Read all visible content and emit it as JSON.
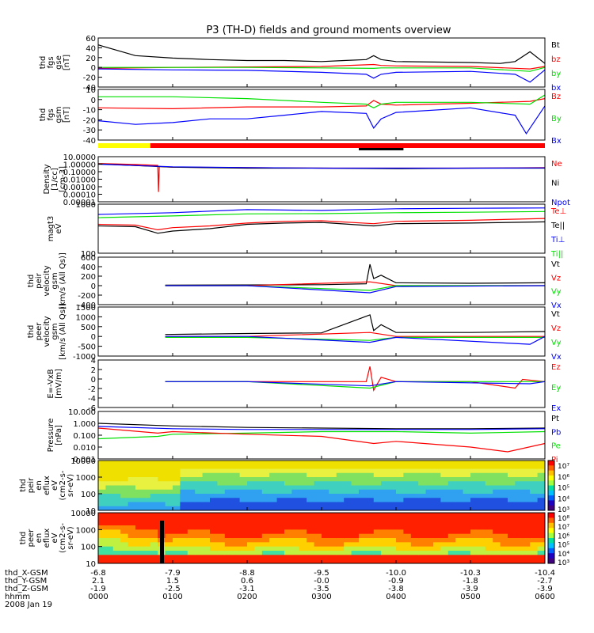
{
  "title": "P3 (TH-D) fields and ground moments overview",
  "colors": {
    "black": "#000000",
    "red": "#ff0000",
    "green": "#00e000",
    "blue": "#0000ff",
    "yellow": "#ffff00",
    "grid_frame": "#000000"
  },
  "chart_data": {
    "type": "line",
    "x_axis": {
      "time_labels": [
        "0000",
        "0100",
        "0200",
        "0300",
        "0400",
        "0500",
        "0600"
      ],
      "rows": [
        {
          "label": "thd_X-GSM",
          "values": [
            "-6.8",
            "-7.9",
            "-8.8",
            "-9.5",
            "-10.0",
            "-10.3",
            "-10.4"
          ]
        },
        {
          "label": "thd_Y-GSM",
          "values": [
            "2.1",
            "1.5",
            "0.6",
            "-0.0",
            "-0.9",
            "-1.8",
            "-2.7"
          ]
        },
        {
          "label": "thd_Z-GSM",
          "values": [
            "-1.9",
            "-2.5",
            "-3.1",
            "-3.5",
            "-3.8",
            "-3.9",
            "-3.9"
          ]
        },
        {
          "label": "hhmm",
          "values": []
        }
      ],
      "date": "2008 Jan 19",
      "range_hours": [
        0,
        6
      ]
    },
    "panels": [
      {
        "id": "fgs-gse",
        "ylabel": [
          "thd",
          "fgs",
          "gse",
          "[nT]"
        ],
        "yticks": [
          "60",
          "40",
          "20",
          "0",
          "-20",
          "-40"
        ],
        "ylim": [
          -40,
          60
        ],
        "series": [
          {
            "name": "Bt",
            "color": "black",
            "x": [
              0,
              0.5,
              1,
              1.5,
              2,
              2.5,
              3,
              3.3,
              3.6,
              3.7,
              3.8,
              4,
              4.5,
              5,
              5.4,
              5.6,
              5.8,
              6
            ],
            "y": [
              46,
              24,
              19,
              16,
              14,
              14,
              12,
              14,
              16,
              24,
              16,
              12,
              11,
              10,
              8,
              12,
              32,
              8
            ]
          },
          {
            "name": "bz",
            "color": "red",
            "x": [
              0,
              1,
              2,
              3,
              3.7,
              3.8,
              4,
              5,
              5.8,
              6
            ],
            "y": [
              -2,
              0,
              1,
              2,
              6,
              4,
              3,
              2,
              -3,
              2
            ]
          },
          {
            "name": "by",
            "color": "green",
            "x": [
              0,
              1,
              2,
              3,
              3.7,
              3.8,
              4,
              5,
              5.8,
              6
            ],
            "y": [
              0,
              0,
              0,
              -1,
              -2,
              -1,
              -1,
              -1,
              -8,
              0
            ]
          },
          {
            "name": "bx",
            "color": "blue",
            "x": [
              0,
              1,
              2,
              3,
              3.6,
              3.7,
              3.8,
              4,
              5,
              5.6,
              5.8,
              6
            ],
            "y": [
              -3,
              -5,
              -6,
              -10,
              -14,
              -22,
              -14,
              -10,
              -8,
              -14,
              -30,
              -5
            ]
          }
        ]
      },
      {
        "id": "fgs-gsm",
        "ylabel": [
          "thd",
          "fgs",
          "gsm",
          "[nT]"
        ],
        "yticks": [
          "10",
          "0",
          "-10",
          "-20",
          "-30",
          "-40"
        ],
        "ylim": [
          -45,
          10
        ],
        "series": [
          {
            "name": "Bz",
            "color": "red",
            "x": [
              0,
              1,
              2,
              3,
              3.6,
              3.7,
              3.8,
              4,
              5,
              5.8,
              6
            ],
            "y": [
              -10,
              -11,
              -9,
              -9,
              -8,
              -2,
              -6,
              -7,
              -5,
              -3,
              0
            ]
          },
          {
            "name": "By",
            "color": "green",
            "x": [
              0,
              1,
              2,
              3,
              3.6,
              3.7,
              3.8,
              4,
              5,
              5.8,
              6
            ],
            "y": [
              2,
              2,
              0,
              -4,
              -6,
              -10,
              -6,
              -4,
              -4,
              -6,
              4
            ]
          },
          {
            "name": "Bx",
            "color": "blue",
            "x": [
              0,
              0.5,
              1,
              1.5,
              2,
              2.5,
              3,
              3.6,
              3.7,
              3.8,
              4,
              5,
              5.6,
              5.75,
              6
            ],
            "y": [
              -24,
              -28,
              -26,
              -22,
              -22,
              -18,
              -14,
              -16,
              -32,
              -22,
              -15,
              -10,
              -18,
              -38,
              -8
            ]
          }
        ]
      },
      {
        "id": "density",
        "ylabel": [
          "Density",
          "[1/cc]",
          "[cm-3]"
        ],
        "yticks": [
          "10.0000",
          "1.00000",
          "0.10000",
          "0.01000",
          "0.00100",
          "0.00010",
          "0.00001"
        ],
        "ylim": [
          1e-05,
          10
        ],
        "scale": "log",
        "series": [
          {
            "name": "Ne",
            "color": "red",
            "x": [
              0,
              0.5,
              0.8,
              0.81,
              0.82,
              1,
              2,
              3,
              4,
              5,
              6
            ],
            "y": [
              1.2,
              0.9,
              0.7,
              0.0002,
              0.5,
              0.4,
              0.35,
              0.3,
              0.3,
              0.3,
              0.35
            ]
          },
          {
            "name": "Ni",
            "color": "black",
            "x": [
              0,
              1,
              2,
              3,
              4,
              5,
              6
            ],
            "y": [
              1.1,
              0.4,
              0.3,
              0.3,
              0.25,
              0.3,
              0.3
            ]
          },
          {
            "name": "Npot",
            "color": "blue",
            "x": [
              0,
              1,
              2,
              3,
              4,
              5,
              6
            ],
            "y": [
              1.0,
              0.45,
              0.35,
              0.3,
              0.3,
              0.3,
              0.32
            ]
          }
        ]
      },
      {
        "id": "temperature",
        "ylabel": [
          "magt3",
          "eV"
        ],
        "yticks": [
          "1000",
          "100"
        ],
        "ylim": [
          100,
          10000
        ],
        "scale": "log",
        "series": [
          {
            "name": "Te⊥",
            "color": "red",
            "x": [
              0,
              0.5,
              0.8,
              1,
              1.5,
              2,
              2.5,
              3,
              3.7,
              4,
              5,
              6
            ],
            "y": [
              1500,
              1400,
              900,
              1100,
              1300,
              1700,
              2000,
              2100,
              1600,
              2000,
              2200,
              2600
            ]
          },
          {
            "name": "Te||",
            "color": "black",
            "x": [
              0,
              0.5,
              0.8,
              1,
              1.5,
              2,
              2.5,
              3,
              3.7,
              4,
              5,
              6
            ],
            "y": [
              1300,
              1200,
              650,
              800,
              1000,
              1500,
              1700,
              1800,
              1300,
              1600,
              1700,
              1900
            ]
          },
          {
            "name": "Ti⊥",
            "color": "blue",
            "x": [
              0,
              1,
              2,
              3,
              4,
              5,
              6
            ],
            "y": [
              3800,
              4500,
              6000,
              5500,
              6500,
              6800,
              7000
            ]
          },
          {
            "name": "Ti||",
            "color": "green",
            "x": [
              0,
              1,
              2,
              3,
              4,
              5,
              6
            ],
            "y": [
              2800,
              3300,
              4000,
              4100,
              4500,
              4700,
              5000
            ]
          }
        ]
      },
      {
        "id": "peir-velocity",
        "ylabel": [
          "thd",
          "peir",
          "velocity",
          "gsm",
          "[km/s (All Qs)]"
        ],
        "yticks": [
          "600",
          "400",
          "200",
          "0",
          "-200",
          "-400"
        ],
        "ylim": [
          -400,
          600
        ],
        "series": [
          {
            "name": "Vt",
            "color": "black",
            "x": [
              0.9,
              2,
              3,
              3.6,
              3.65,
              3.7,
              3.8,
              4,
              5,
              6
            ],
            "y": [
              10,
              15,
              20,
              40,
              450,
              150,
              220,
              60,
              50,
              60
            ]
          },
          {
            "name": "Vz",
            "color": "red",
            "x": [
              0.9,
              2,
              3.65,
              4,
              6
            ],
            "y": [
              0,
              0,
              80,
              0,
              0
            ]
          },
          {
            "name": "Vy",
            "color": "green",
            "x": [
              0.9,
              2,
              3.65,
              4,
              6
            ],
            "y": [
              0,
              0,
              -100,
              0,
              0
            ]
          },
          {
            "name": "Vx",
            "color": "blue",
            "x": [
              0.9,
              2,
              3.65,
              4,
              6
            ],
            "y": [
              0,
              0,
              -150,
              -20,
              0
            ]
          }
        ]
      },
      {
        "id": "peer-velocity",
        "ylabel": [
          "thd",
          "peer",
          "velocity",
          "gsm",
          "[km/s (All Qs)]"
        ],
        "yticks": [
          "1500",
          "1000",
          "500",
          "0",
          "-500",
          "-1000"
        ],
        "ylim": [
          -1000,
          1500
        ],
        "series": [
          {
            "name": "Vt",
            "color": "black",
            "x": [
              0.9,
              2,
              3,
              3.65,
              3.7,
              3.8,
              4,
              5,
              6
            ],
            "y": [
              100,
              150,
              180,
              1100,
              300,
              600,
              200,
              200,
              250
            ]
          },
          {
            "name": "Vz",
            "color": "red",
            "x": [
              0.9,
              2,
              3.65,
              4,
              6
            ],
            "y": [
              0,
              0,
              200,
              0,
              0
            ]
          },
          {
            "name": "Vy",
            "color": "green",
            "x": [
              0.9,
              2,
              3.65,
              4,
              6
            ],
            "y": [
              -50,
              -50,
              -200,
              -50,
              -50
            ]
          },
          {
            "name": "Vx",
            "color": "blue",
            "x": [
              0.9,
              2,
              3.65,
              4,
              5.8,
              6
            ],
            "y": [
              0,
              0,
              -300,
              -50,
              -400,
              0
            ]
          }
        ]
      },
      {
        "id": "efield",
        "ylabel": [
          "E=-VxB",
          "[mV/m]"
        ],
        "yticks": [
          "4",
          "2",
          "0",
          "-2",
          "-4",
          "-6"
        ],
        "ylim": [
          -6,
          5
        ],
        "series": [
          {
            "name": "Ez",
            "color": "red",
            "x": [
              0.9,
              2,
              3,
              3.6,
              3.65,
              3.7,
              3.8,
              4,
              5,
              5.6,
              5.7,
              6
            ],
            "y": [
              0,
              0,
              0,
              0,
              3.5,
              -2,
              1,
              0,
              0,
              -1.5,
              0.5,
              0
            ]
          },
          {
            "name": "Ey",
            "color": "green",
            "x": [
              0.9,
              2,
              3.65,
              4,
              6
            ],
            "y": [
              0,
              0,
              -1.5,
              0,
              0
            ]
          },
          {
            "name": "Ex",
            "color": "blue",
            "x": [
              0.9,
              2,
              3.65,
              4,
              5.8,
              6
            ],
            "y": [
              0,
              0,
              -1,
              0,
              -0.5,
              0
            ]
          }
        ]
      },
      {
        "id": "pressure",
        "ylabel": [
          "Pressure",
          "[nPa]"
        ],
        "yticks": [
          "10.000",
          "1.000",
          "0.100",
          "0.010",
          "0.001"
        ],
        "ylim": [
          0.001,
          10
        ],
        "scale": "log",
        "series": [
          {
            "name": "Pt",
            "color": "black",
            "x": [
              0,
              1,
              2,
              3,
              4,
              5,
              6
            ],
            "y": [
              1.0,
              0.6,
              0.45,
              0.4,
              0.35,
              0.35,
              0.4
            ]
          },
          {
            "name": "Pb",
            "color": "blue",
            "x": [
              0,
              1,
              2,
              3,
              4,
              5,
              6
            ],
            "y": [
              0.55,
              0.35,
              0.3,
              0.3,
              0.3,
              0.3,
              0.35
            ]
          },
          {
            "name": "Pe",
            "color": "green",
            "x": [
              0,
              0.8,
              1,
              2,
              3,
              4,
              5,
              6
            ],
            "y": [
              0.05,
              0.08,
              0.12,
              0.15,
              0.2,
              0.2,
              0.15,
              0.2
            ]
          },
          {
            "name": "Pi",
            "color": "red",
            "x": [
              0,
              0.8,
              1,
              2,
              3,
              3.7,
              4,
              5,
              5.5,
              6
            ],
            "y": [
              0.4,
              0.15,
              0.2,
              0.12,
              0.08,
              0.02,
              0.03,
              0.01,
              0.004,
              0.02
            ]
          }
        ]
      },
      {
        "id": "peir-spectrogram",
        "type": "heatmap",
        "ylabel": [
          "thd",
          "peir",
          "en",
          "eflux",
          "eV",
          "(cm2-s-",
          "sr-eV)"
        ],
        "yticks": [
          "10000",
          "1000",
          "100",
          "10"
        ],
        "colorbar_ticks": [
          "10⁷",
          "10⁶",
          "10⁵",
          "10⁴",
          "10³"
        ]
      },
      {
        "id": "peer-spectrogram",
        "type": "heatmap",
        "ylabel": [
          "thd",
          "peer",
          "en",
          "eflux",
          "eV",
          "(cm2-s-",
          "sr-eV)"
        ],
        "yticks": [
          "10000",
          "1000",
          "100",
          "10"
        ],
        "colorbar_ticks": [
          "10⁸",
          "10⁷",
          "10⁶",
          "10⁵",
          "10⁴",
          "10³"
        ]
      }
    ],
    "status_bar": [
      {
        "color": "yellow",
        "x0": 0,
        "x1": 0.7
      },
      {
        "color": "red",
        "x0": 0.7,
        "x1": 6
      }
    ],
    "mode_bar": {
      "color": "black",
      "x0": 3.5,
      "x1": 4.1
    }
  }
}
